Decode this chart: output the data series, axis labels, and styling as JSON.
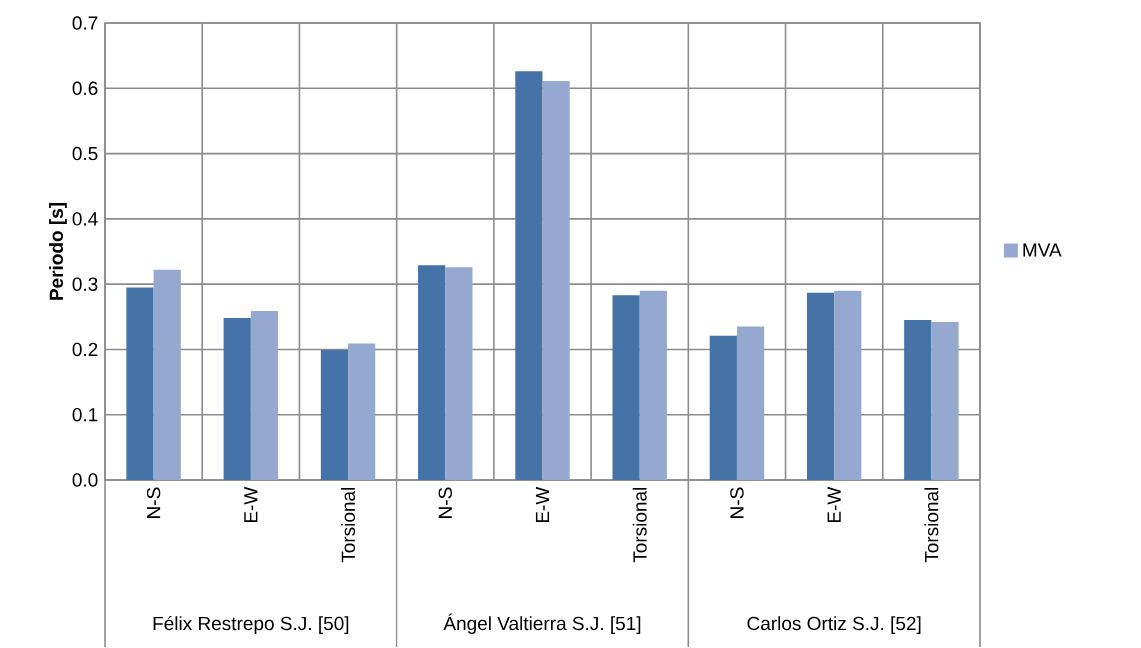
{
  "chart_data": {
    "type": "bar",
    "ylabel": "Periodo [s]",
    "categories": [
      "N-S",
      "E-W",
      "Torsional",
      "N-S",
      "E-W",
      "Torsional",
      "N-S",
      "E-W",
      "Torsional"
    ],
    "series": [
      {
        "color": "#4573a7",
        "values": [
          0.295,
          0.248,
          0.199,
          0.329,
          0.626,
          0.283,
          0.221,
          0.287,
          0.245
        ]
      },
      {
        "name": "MVA",
        "color": "#95a9d0",
        "values": [
          0.322,
          0.259,
          0.209,
          0.326,
          0.611,
          0.29,
          0.235,
          0.29,
          0.242
        ]
      }
    ],
    "annotations": [
      "Félix Restrepo S.J. [50]",
      "Ángel Valtierra S.J. [51]",
      "Carlos Ortiz S.J. [52]"
    ],
    "ylim": [
      0,
      0.7
    ],
    "yticks": [
      {
        "value": 0,
        "label": "0.0"
      },
      0.1,
      0.2,
      0.3,
      0.4,
      0.5,
      0.6,
      0.7
    ],
    "grid": true,
    "legend": "right"
  }
}
